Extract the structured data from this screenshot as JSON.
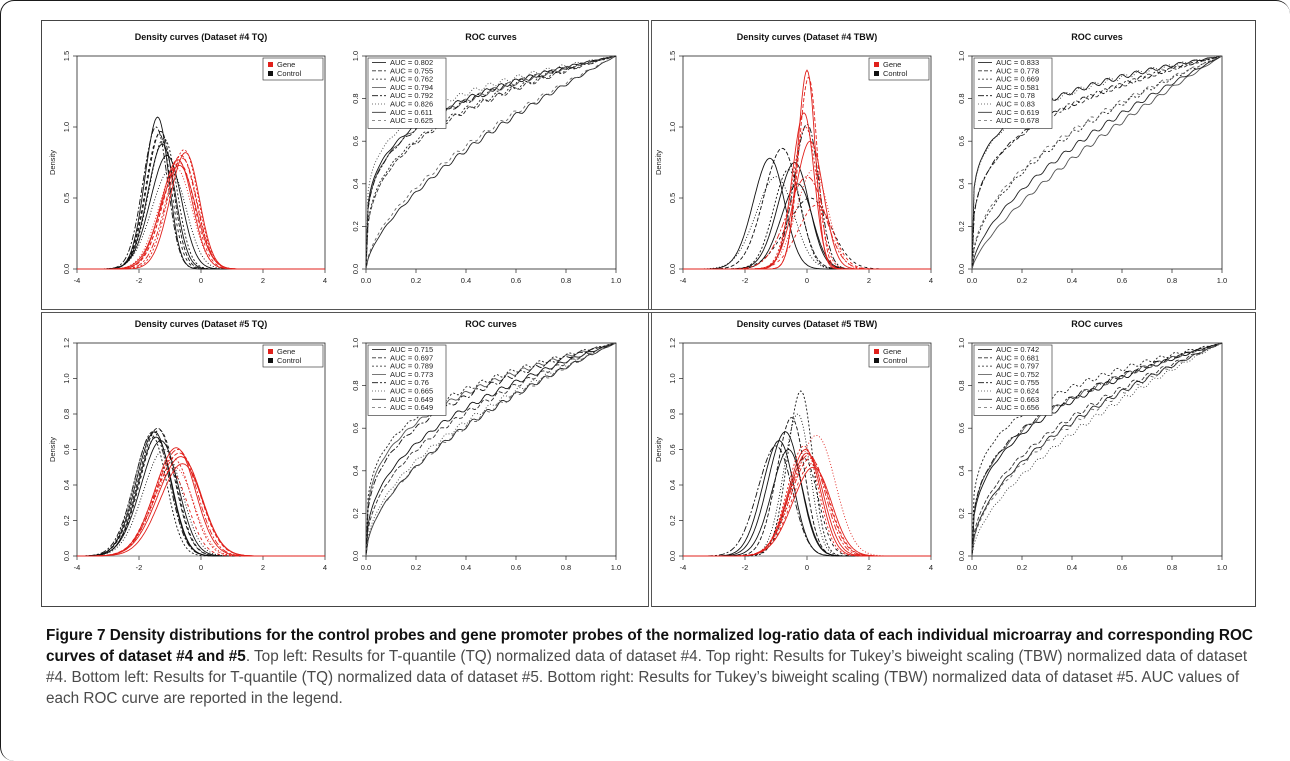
{
  "caption": {
    "title": "Figure 7 Density distributions for the control probes and gene promoter probes of the normalized log-ratio data of each individual microarray and corresponding ROC curves of dataset #4 and #5",
    "text": ". Top left: Results for T-quantile (TQ) normalized data of dataset #4. Top right: Results for Tukey’s biweight scaling (TBW) normalized data of dataset #4. Bottom left: Results for T-quantile (TQ) normalized data of dataset #5. Bottom right: Results for Tukey’s biweight scaling (TBW) normalized data of dataset #5. AUC values of each ROC curve are reported in the legend."
  },
  "colors": {
    "gene": "#e0201b",
    "control": "#111111"
  },
  "chart_data": [
    {
      "type": "line",
      "title": "Density curves (Dataset #4 TQ)",
      "ylabel": "Density",
      "xlim": [
        -4,
        4
      ],
      "ylim": [
        0,
        1.5
      ],
      "xticks": [
        -4,
        -2,
        0,
        2,
        4
      ],
      "yticks": [
        0.0,
        0.5,
        1.0,
        1.5
      ],
      "legend": [
        "Gene",
        "Control"
      ],
      "gene": {
        "means": [
          -0.75,
          -0.65,
          -0.55,
          -0.7,
          -0.6,
          -0.8,
          -0.5,
          -0.7
        ],
        "sds": [
          0.5,
          0.52,
          0.48,
          0.55,
          0.5,
          0.53,
          0.47,
          0.51
        ],
        "peaks": [
          0.77,
          0.8,
          0.84,
          0.73,
          0.78,
          0.71,
          0.82,
          0.75
        ]
      },
      "control": {
        "means": [
          -1.4,
          -1.3,
          -1.2,
          -1.1,
          -1.45,
          -1.0,
          -1.25,
          -1.35
        ],
        "sds": [
          0.38,
          0.42,
          0.45,
          0.5,
          0.4,
          0.55,
          0.44,
          0.41
        ],
        "peaks": [
          1.07,
          0.97,
          0.92,
          0.8,
          1.0,
          0.7,
          0.88,
          0.95
        ]
      }
    },
    {
      "type": "line",
      "title": "ROC curves",
      "xlim": [
        0,
        1
      ],
      "ylim": [
        0,
        1
      ],
      "xticks": [
        0.0,
        0.2,
        0.4,
        0.6,
        0.8,
        1.0
      ],
      "yticks": [
        0.0,
        0.2,
        0.4,
        0.6,
        0.8,
        1.0
      ],
      "auc": [
        "AUC = 0.802",
        "AUC = 0.755",
        "AUC = 0.762",
        "AUC = 0.794",
        "AUC = 0.792",
        "AUC = 0.826",
        "AUC = 0.611",
        "AUC = 0.625"
      ],
      "auc_values": [
        0.802,
        0.755,
        0.762,
        0.794,
        0.792,
        0.826,
        0.611,
        0.625
      ]
    },
    {
      "type": "line",
      "title": "Density curves (Dataset #4 TBW)",
      "ylabel": "Density",
      "xlim": [
        -4,
        4
      ],
      "ylim": [
        0,
        1.5
      ],
      "xticks": [
        -4,
        -2,
        0,
        2,
        4
      ],
      "yticks": [
        0.0,
        0.5,
        1.0,
        1.5
      ],
      "legend": [
        "Gene",
        "Control"
      ],
      "gene": {
        "means": [
          0.0,
          0.05,
          -0.05,
          0.1,
          0.0,
          0.2,
          -0.1,
          0.3
        ],
        "sds": [
          0.28,
          0.3,
          0.4,
          0.45,
          0.6,
          0.5,
          0.35,
          0.55
        ],
        "peaks": [
          1.4,
          1.35,
          1.0,
          0.9,
          0.65,
          0.7,
          1.1,
          0.45
        ]
      },
      "control": {
        "means": [
          -1.2,
          -0.8,
          -0.6,
          -0.3,
          0.0,
          -1.0,
          -0.4,
          0.1
        ],
        "sds": [
          0.5,
          0.55,
          0.45,
          0.5,
          0.4,
          0.6,
          0.5,
          0.7
        ],
        "peaks": [
          0.78,
          0.85,
          0.7,
          0.6,
          1.02,
          0.65,
          0.75,
          0.5
        ]
      }
    },
    {
      "type": "line",
      "title": "ROC curves",
      "xlim": [
        0,
        1
      ],
      "ylim": [
        0,
        1
      ],
      "xticks": [
        0.0,
        0.2,
        0.4,
        0.6,
        0.8,
        1.0
      ],
      "yticks": [
        0.0,
        0.2,
        0.4,
        0.6,
        0.8,
        1.0
      ],
      "auc": [
        "AUC = 0.833",
        "AUC = 0.778",
        "AUC = 0.669",
        "AUC = 0.581",
        "AUC = 0.78",
        "AUC = 0.83",
        "AUC = 0.619",
        "AUC = 0.678"
      ],
      "auc_values": [
        0.833,
        0.778,
        0.669,
        0.581,
        0.78,
        0.83,
        0.619,
        0.678
      ]
    },
    {
      "type": "line",
      "title": "Density curves (Dataset #5 TQ)",
      "ylabel": "Density",
      "xlim": [
        -4,
        4
      ],
      "ylim": [
        0,
        1.2
      ],
      "xticks": [
        -4,
        -2,
        0,
        2,
        4
      ],
      "yticks": [
        0.0,
        0.2,
        0.4,
        0.6,
        0.8,
        1.0,
        1.2
      ],
      "legend": [
        "Gene",
        "Control"
      ],
      "gene": {
        "means": [
          -0.8,
          -0.7,
          -0.9,
          -0.6,
          -0.75,
          -0.85,
          -0.65,
          -1.0
        ],
        "sds": [
          0.65,
          0.7,
          0.62,
          0.68,
          0.66,
          0.64,
          0.7,
          0.6
        ],
        "peaks": [
          0.61,
          0.58,
          0.55,
          0.52,
          0.6,
          0.5,
          0.56,
          0.48
        ]
      },
      "control": {
        "means": [
          -1.5,
          -1.4,
          -1.6,
          -1.3,
          -1.55,
          -1.2,
          -1.45,
          -1.35
        ],
        "sds": [
          0.55,
          0.58,
          0.52,
          0.6,
          0.56,
          0.62,
          0.54,
          0.57
        ],
        "peaks": [
          0.7,
          0.72,
          0.68,
          0.65,
          0.7,
          0.6,
          0.67,
          0.71
        ]
      }
    },
    {
      "type": "line",
      "title": "ROC curves",
      "xlim": [
        0,
        1
      ],
      "ylim": [
        0,
        1
      ],
      "xticks": [
        0.0,
        0.2,
        0.4,
        0.6,
        0.8,
        1.0
      ],
      "yticks": [
        0.0,
        0.2,
        0.4,
        0.6,
        0.8,
        1.0
      ],
      "auc": [
        "AUC = 0.715",
        "AUC = 0.697",
        "AUC = 0.789",
        "AUC = 0.773",
        "AUC = 0.76",
        "AUC = 0.665",
        "AUC = 0.649",
        "AUC = 0.649"
      ],
      "auc_values": [
        0.715,
        0.697,
        0.789,
        0.773,
        0.76,
        0.665,
        0.649,
        0.649
      ]
    },
    {
      "type": "line",
      "title": "Density curves (Dataset #5 TBW)",
      "ylabel": "Density",
      "xlim": [
        -4,
        4
      ],
      "ylim": [
        0,
        1.2
      ],
      "xticks": [
        -4,
        -2,
        0,
        2,
        4
      ],
      "yticks": [
        0.0,
        0.2,
        0.4,
        0.6,
        0.8,
        1.0,
        1.2
      ],
      "legend": [
        "Gene",
        "Control"
      ],
      "gene": {
        "means": [
          0.0,
          0.1,
          -0.1,
          0.2,
          0.05,
          0.3,
          -0.05,
          0.15
        ],
        "sds": [
          0.55,
          0.6,
          0.5,
          0.62,
          0.58,
          0.65,
          0.52,
          0.6
        ],
        "peaks": [
          0.58,
          0.55,
          0.62,
          0.5,
          0.57,
          0.68,
          0.6,
          0.52
        ]
      },
      "control": {
        "means": [
          -0.9,
          -0.5,
          -0.2,
          -0.7,
          -1.0,
          -0.3,
          -0.6,
          -0.1
        ],
        "sds": [
          0.5,
          0.45,
          0.4,
          0.52,
          0.55,
          0.42,
          0.5,
          0.48
        ],
        "peaks": [
          0.65,
          0.78,
          0.93,
          0.7,
          0.62,
          0.8,
          0.6,
          0.55
        ]
      }
    },
    {
      "type": "line",
      "title": "ROC curves",
      "xlim": [
        0,
        1
      ],
      "ylim": [
        0,
        1
      ],
      "xticks": [
        0.0,
        0.2,
        0.4,
        0.6,
        0.8,
        1.0
      ],
      "yticks": [
        0.0,
        0.2,
        0.4,
        0.6,
        0.8,
        1.0
      ],
      "auc": [
        "AUC = 0.742",
        "AUC = 0.681",
        "AUC = 0.797",
        "AUC = 0.752",
        "AUC = 0.755",
        "AUC = 0.624",
        "AUC = 0.663",
        "AUC = 0.656"
      ],
      "auc_values": [
        0.742,
        0.681,
        0.797,
        0.752,
        0.755,
        0.624,
        0.663,
        0.656
      ]
    }
  ]
}
